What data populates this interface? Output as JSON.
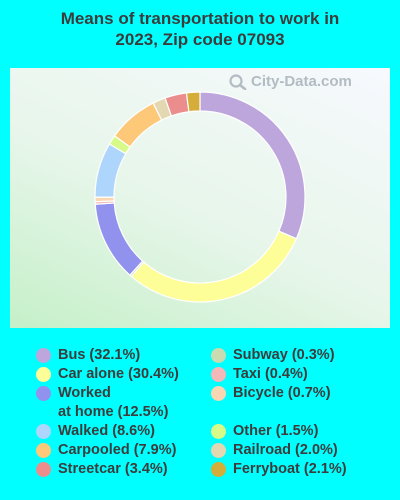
{
  "chart_data": {
    "type": "pie",
    "title": "Means of transportation to work in 2023, Zip code 07093",
    "watermark": "City-Data.com",
    "slices": [
      {
        "label": "Bus (32.1%)",
        "value": 32.1,
        "color": "#bca6dc"
      },
      {
        "label": "Car alone (30.4%)",
        "value": 30.4,
        "color": "#fefe98"
      },
      {
        "label": "Subway (0.3%)",
        "value": 0.3,
        "color": "#c9dbb0"
      },
      {
        "label": "Worked at home (12.5%)",
        "value": 12.5,
        "color": "#9191ee"
      },
      {
        "label": "Taxi (0.4%)",
        "value": 0.4,
        "color": "#f3b8b8"
      },
      {
        "label": "Bicycle (0.7%)",
        "value": 0.7,
        "color": "#fad6b2"
      },
      {
        "label": "Walked (8.6%)",
        "value": 8.6,
        "color": "#aed5fb"
      },
      {
        "label": "Other (1.5%)",
        "value": 1.5,
        "color": "#d7fb88"
      },
      {
        "label": "Carpooled (7.9%)",
        "value": 7.9,
        "color": "#fdc878"
      },
      {
        "label": "Railroad (2.0%)",
        "value": 2.0,
        "color": "#e3d8b2"
      },
      {
        "label": "Streetcar (3.4%)",
        "value": 3.4,
        "color": "#ec8d8d"
      },
      {
        "label": "Ferryboat (2.1%)",
        "value": 2.1,
        "color": "#d4ae38"
      }
    ],
    "legend": {
      "left": [
        {
          "line1": "Bus (32.1%)",
          "line2": "",
          "color": "#bca6dc"
        },
        {
          "line1": "Car alone (30.4%)",
          "line2": "",
          "color": "#fefe98"
        },
        {
          "line1": "Worked",
          "line2": "at home (12.5%)",
          "color": "#9191ee"
        },
        {
          "line1": "Walked (8.6%)",
          "line2": "",
          "color": "#aed5fb"
        },
        {
          "line1": "Carpooled (7.9%)",
          "line2": "",
          "color": "#fdc878"
        },
        {
          "line1": "Streetcar (3.4%)",
          "line2": "",
          "color": "#ec8d8d"
        }
      ],
      "right": [
        {
          "line1": "Subway (0.3%)",
          "line2": "",
          "color": "#c9dbb0"
        },
        {
          "line1": "Taxi (0.4%)",
          "line2": "",
          "color": "#f3b8b8"
        },
        {
          "line1": "Bicycle (0.7%)",
          "line2": "",
          "color": "#fad6b2"
        },
        {
          "line1": "Other (1.5%)",
          "line2": "",
          "color": "#d7fb88"
        },
        {
          "line1": "Railroad (2.0%)",
          "line2": "",
          "color": "#e3d8b2"
        },
        {
          "line1": "Ferryboat (2.1%)",
          "line2": "",
          "color": "#d4ae38"
        }
      ]
    }
  }
}
